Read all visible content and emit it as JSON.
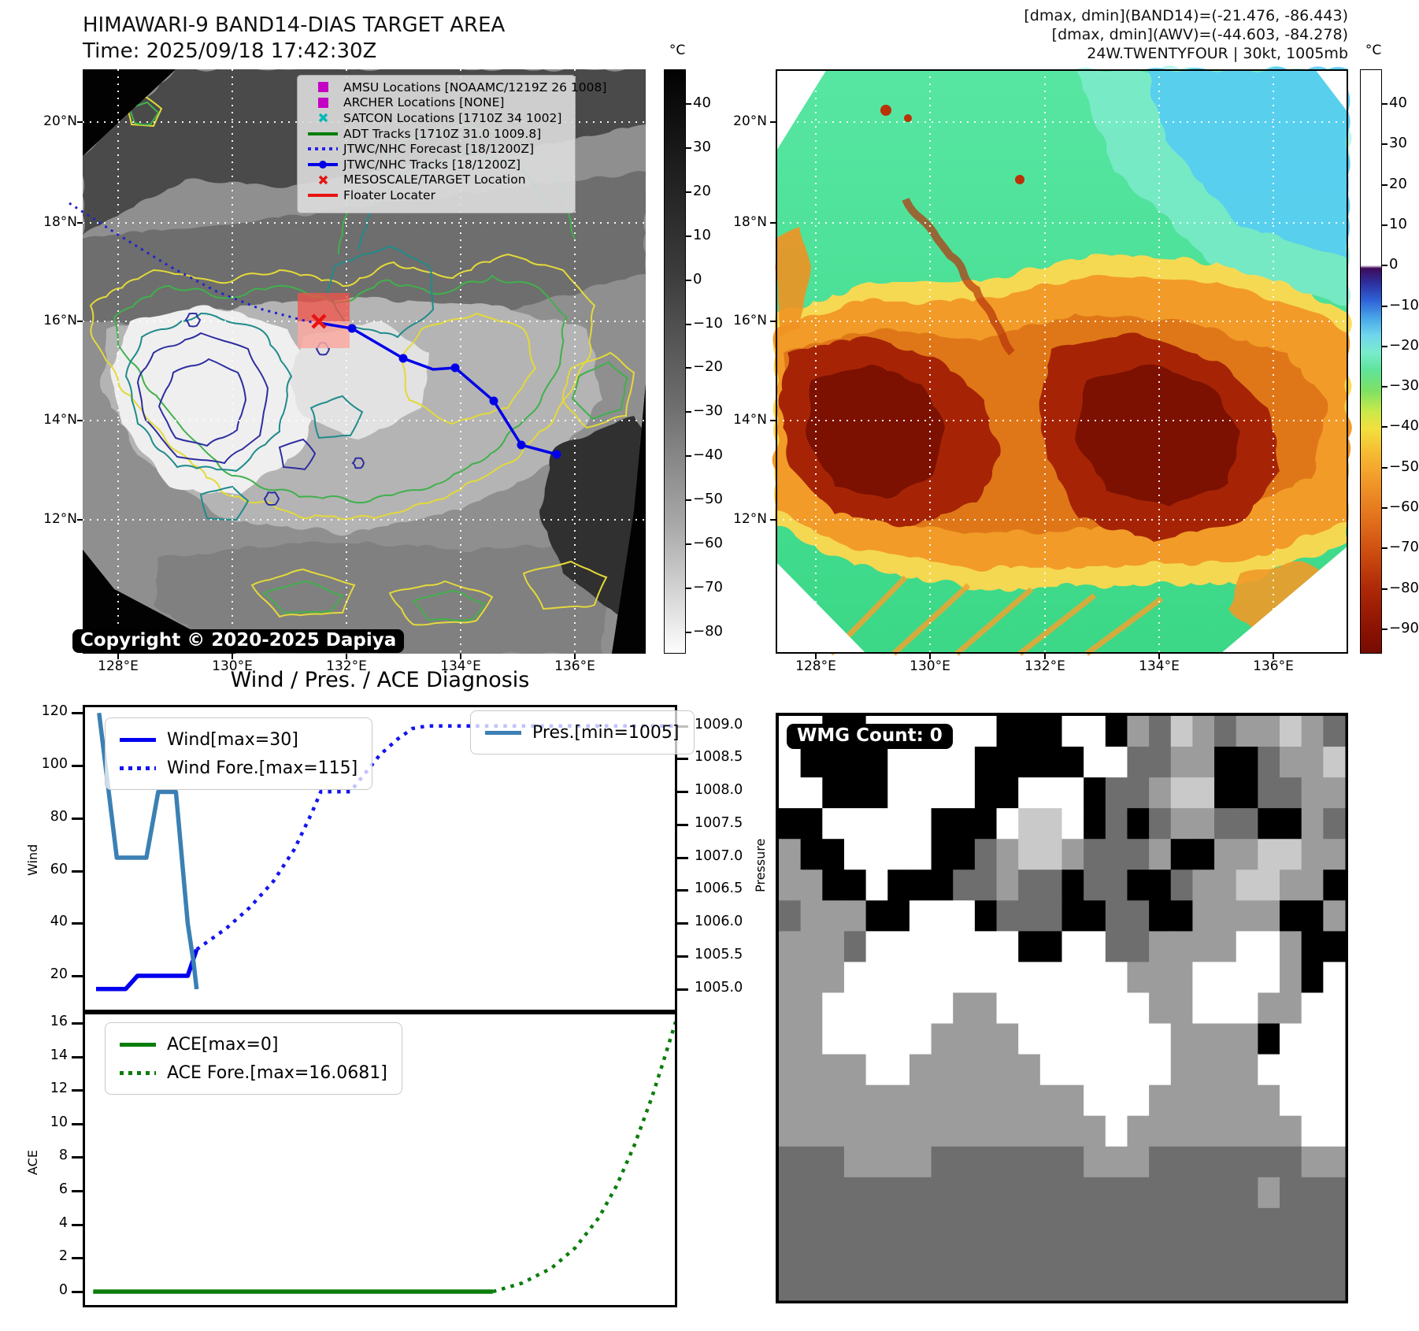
{
  "header": {
    "title_line1": "HIMAWARI-9 BAND14-DIAS TARGET AREA",
    "title_line2": "Time: 2025/09/18 17:42:30Z",
    "right_line1": "[dmax, dmin](BAND14)=(-21.476, -86.443)",
    "right_line2": "[dmax, dmin](AWV)=(-44.603, -84.278)",
    "right_line3": "24W.TWENTYFOUR | 30kt, 1005mb"
  },
  "left_map": {
    "x_ticks": [
      "128°E",
      "130°E",
      "132°E",
      "134°E",
      "136°E"
    ],
    "y_ticks": [
      "20°N",
      "18°N",
      "16°N",
      "14°N",
      "12°N"
    ],
    "copyright": "Copyright © 2020-2025 Dapiya",
    "legend": [
      {
        "label": "AMSU Locations [NOAAMC/1219Z 26 1008]",
        "marker": "square",
        "color": "#c400c4"
      },
      {
        "label": "ARCHER Locations [NONE]",
        "marker": "square",
        "color": "#c400c4"
      },
      {
        "label": "SATCON Locations [1710Z 34 1002]",
        "marker": "x",
        "color": "#00b8b8"
      },
      {
        "label": "ADT Tracks [1710Z 31.0 1009.8]",
        "marker": "line",
        "color": "#007d00"
      },
      {
        "label": "JTWC/NHC Forecast [18/1200Z]",
        "marker": "dotted",
        "color": "#2222e8"
      },
      {
        "label": "JTWC/NHC Tracks [18/1200Z]",
        "marker": "line-dot",
        "color": "#0000e8"
      },
      {
        "label": "MESOSCALE/TARGET Location",
        "marker": "x",
        "color": "#e81414"
      },
      {
        "label": "Floater Locater",
        "marker": "line",
        "color": "#e81414"
      }
    ]
  },
  "left_colorbar": {
    "unit": "°C",
    "ticks": [
      "40",
      "30",
      "20",
      "10",
      "0",
      "−10",
      "−20",
      "−30",
      "−40",
      "−50",
      "−60",
      "−70",
      "−80"
    ]
  },
  "right_map": {
    "x_ticks": [
      "128°E",
      "130°E",
      "132°E",
      "134°E",
      "136°E"
    ],
    "y_ticks": [
      "20°N",
      "18°N",
      "16°N",
      "14°N",
      "12°N"
    ]
  },
  "right_colorbar": {
    "unit": "°C",
    "ticks": [
      "40",
      "30",
      "20",
      "10",
      "0",
      "−10",
      "−20",
      "−30",
      "−40",
      "−50",
      "−60",
      "−70",
      "−80",
      "−90"
    ]
  },
  "charts_title": "Wind / Pres. / ACE Diagnosis",
  "chart_data": [
    {
      "type": "line",
      "title": "Wind / Pres. / ACE Diagnosis",
      "y_left": {
        "label": "Wind",
        "ticks": [
          "120",
          "100",
          "80",
          "60",
          "40",
          "20"
        ],
        "range": [
          6,
          120
        ]
      },
      "y_right": {
        "label": "Pressure",
        "ticks": [
          "1009.0",
          "1008.5",
          "1008.0",
          "1007.5",
          "1007.0",
          "1006.5",
          "1006.0",
          "1005.5",
          "1005.0"
        ],
        "range": [
          1004.7,
          1009.3
        ]
      },
      "series": [
        {
          "name": "Wind[max=30]",
          "axis": "left",
          "style": "solid",
          "color": "#0000ee",
          "points": [
            [
              0.02,
              15
            ],
            [
              0.07,
              15
            ],
            [
              0.09,
              20
            ],
            [
              0.175,
              20
            ],
            [
              0.19,
              30
            ]
          ]
        },
        {
          "name": "Wind Fore.[max=115]",
          "axis": "left",
          "style": "dotted",
          "color": "#1414f0",
          "points": [
            [
              0.19,
              30
            ],
            [
              0.24,
              38
            ],
            [
              0.28,
              46
            ],
            [
              0.32,
              56
            ],
            [
              0.355,
              68
            ],
            [
              0.385,
              82
            ],
            [
              0.4,
              90
            ],
            [
              0.45,
              90
            ],
            [
              0.475,
              97
            ],
            [
              0.5,
              104
            ],
            [
              0.53,
              110
            ],
            [
              0.555,
              114
            ],
            [
              0.58,
              115
            ],
            [
              1.0,
              115
            ]
          ]
        },
        {
          "name": "Pres.[min=1005]",
          "axis": "right",
          "style": "solid",
          "color": "#3b80b4",
          "points": [
            [
              0.025,
              1009.2
            ],
            [
              0.055,
              1007.0
            ],
            [
              0.105,
              1007.0
            ],
            [
              0.125,
              1008.0
            ],
            [
              0.155,
              1008.0
            ],
            [
              0.175,
              1006.0
            ],
            [
              0.185,
              1005.4
            ],
            [
              0.19,
              1005.0
            ]
          ]
        }
      ]
    },
    {
      "type": "line",
      "y_left": {
        "label": "ACE",
        "ticks": [
          "16",
          "14",
          "12",
          "10",
          "8",
          "6",
          "4",
          "2",
          "0"
        ],
        "range": [
          -0.8,
          16.6
        ]
      },
      "series": [
        {
          "name": "ACE[max=0]",
          "axis": "left",
          "style": "solid",
          "color": "#0a7d0a",
          "points": [
            [
              0.015,
              0
            ],
            [
              0.691,
              0
            ]
          ]
        },
        {
          "name": "ACE Fore.[max=16.0681]",
          "axis": "left",
          "style": "dotted",
          "color": "#0a7d0a",
          "points": [
            [
              0.691,
              0
            ],
            [
              0.74,
              0.5
            ],
            [
              0.79,
              1.4
            ],
            [
              0.83,
              2.6
            ],
            [
              0.87,
              4.4
            ],
            [
              0.9,
              6.3
            ],
            [
              0.93,
              8.7
            ],
            [
              0.96,
              11.6
            ],
            [
              0.98,
              13.8
            ],
            [
              1.0,
              16.07
            ]
          ]
        }
      ]
    }
  ],
  "wmg": {
    "label": "WMG Count: 0",
    "palette": {
      "K": "#000000",
      "D": "#6e6e6e",
      "G": "#9c9c9c",
      "L": "#c9c9c9",
      "W": "#ffffff"
    },
    "rows": [
      "WWKKWWWWWWKKKWWKGDLGDGGLGD",
      "WKKKKWWWWKKKKKWWDDGGKKDGGL",
      "WWKKKWWWWKKWWWKDDGLLKKDDGG",
      "KKWWWWWKKKWLLWKDKDGGDDKKGD",
      "GKKWWWWKKDGLLGDDDGKKGGLLGG",
      "GGKKWKKKDDGDDKDDKKDGGLLGGK",
      "DGGGKKWWWKDDDKKDDKKGGGGKKG",
      "GGGDWWWWWWWKKWWDDGGGGWWGKK",
      "GGGWWWWWWWWWWWWWGGGWWWWGKW",
      "GGWWWWWWGGWWWWWWWGGWWWGGWW",
      "GGWWWWWGGGGWWWWWWWGGGGKWWW",
      "GGGGWWGGGGGGWWWWWWGGGGWWWW",
      "GGGGGGGGGGGGGGWWWGGGGGGWWW",
      "GGGGGGGGGGGGGGGWGGGGGGGGWW",
      "DDDGGGGDDDDDDDGGGDDDDDDDGG",
      "DDDDDDDDDDDDDDDDDDDDDDGDDD",
      "DDDDDDDDDDDDDDDDDDDDDDDDDD",
      "DDDDDDDDDDDDDDDDDDDDDDDDDD",
      "DDDDDDDDDDDDDDDDDDDDDDDDDD"
    ]
  }
}
